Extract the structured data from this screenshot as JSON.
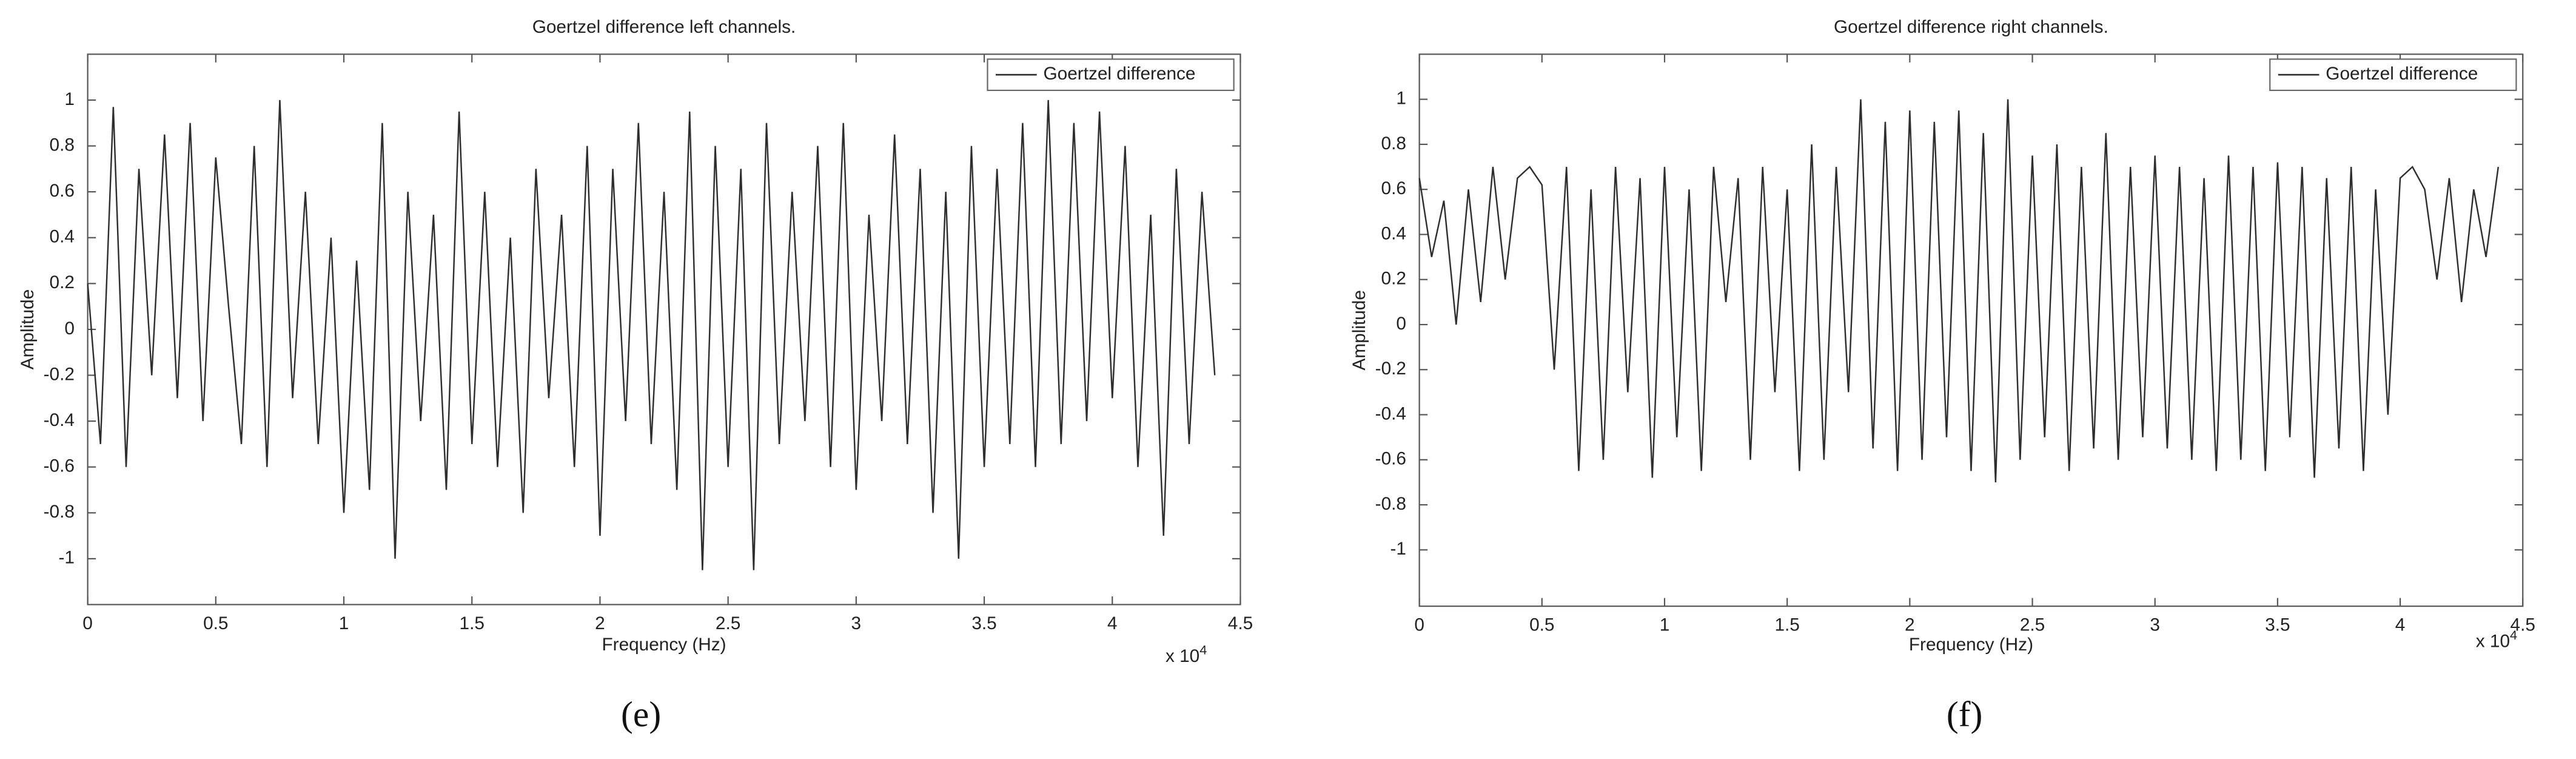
{
  "chart_data": [
    {
      "type": "line",
      "title": "Goertzel difference left channels.",
      "x_label": "Frequency (Hz)",
      "y_label": "Amplitude",
      "x_scale_base": "x 10",
      "x_scale_exponent": "4",
      "caption": "(e)",
      "legend": "upper right",
      "xlim": [
        0,
        4.5
      ],
      "xticks": [
        0,
        0.5,
        1,
        1.5,
        2,
        2.5,
        3,
        3.5,
        4,
        4.5
      ],
      "ylim": [
        -1.2,
        1.2
      ],
      "yticks": [
        -1,
        -0.8,
        -0.6,
        -0.4,
        -0.2,
        0,
        0.2,
        0.4,
        0.6,
        0.8,
        1
      ],
      "x": [
        0,
        0.05,
        0.1,
        0.15,
        0.2,
        0.25,
        0.3,
        0.35,
        0.4,
        0.45,
        0.5,
        0.55,
        0.6,
        0.65,
        0.7,
        0.75,
        0.8,
        0.85,
        0.9,
        0.95,
        1,
        1.05,
        1.1,
        1.15,
        1.2,
        1.25,
        1.3,
        1.35,
        1.4,
        1.45,
        1.5,
        1.55,
        1.6,
        1.65,
        1.7,
        1.75,
        1.8,
        1.85,
        1.9,
        1.95,
        2,
        2.05,
        2.1,
        2.15,
        2.2,
        2.25,
        2.3,
        2.35,
        2.4,
        2.45,
        2.5,
        2.55,
        2.6,
        2.65,
        2.7,
        2.75,
        2.8,
        2.85,
        2.9,
        2.95,
        3,
        3.05,
        3.1,
        3.15,
        3.2,
        3.25,
        3.3,
        3.35,
        3.4,
        3.45,
        3.5,
        3.55,
        3.6,
        3.65,
        3.7,
        3.75,
        3.8,
        3.85,
        3.9,
        3.95,
        4,
        4.05,
        4.1,
        4.15,
        4.2,
        4.25,
        4.3,
        4.35,
        4.4
      ],
      "series": [
        {
          "name": "Goertzel difference",
          "color": "#2e2e2e",
          "values": [
            0.2,
            -0.5,
            0.97,
            -0.6,
            0.7,
            -0.2,
            0.85,
            -0.3,
            0.9,
            -0.4,
            0.75,
            0.1,
            -0.5,
            0.8,
            -0.6,
            1.0,
            -0.3,
            0.6,
            -0.5,
            0.4,
            -0.8,
            0.3,
            -0.7,
            0.9,
            -1.0,
            0.6,
            -0.4,
            0.5,
            -0.7,
            0.95,
            -0.5,
            0.6,
            -0.6,
            0.4,
            -0.8,
            0.7,
            -0.3,
            0.5,
            -0.6,
            0.8,
            -0.9,
            0.7,
            -0.4,
            0.9,
            -0.5,
            0.6,
            -0.7,
            0.95,
            -1.05,
            0.8,
            -0.6,
            0.7,
            -1.05,
            0.9,
            -0.5,
            0.6,
            -0.4,
            0.8,
            -0.6,
            0.9,
            -0.7,
            0.5,
            -0.4,
            0.85,
            -0.5,
            0.7,
            -0.8,
            0.6,
            -1.0,
            0.8,
            -0.6,
            0.7,
            -0.5,
            0.9,
            -0.6,
            1.0,
            -0.5,
            0.9,
            -0.4,
            0.95,
            -0.3,
            0.8,
            -0.6,
            0.5,
            -0.9,
            0.7,
            -0.5,
            0.6,
            -0.2
          ]
        }
      ]
    },
    {
      "type": "line",
      "title": "Goertzel difference right channels.",
      "x_label": "Frequency (Hz)",
      "y_label": "Amplitude",
      "x_scale_base": "x 10",
      "x_scale_exponent": "4",
      "caption": "(f)",
      "legend": "upper right",
      "xlim": [
        0,
        4.5
      ],
      "xticks": [
        0,
        0.5,
        1,
        1.5,
        2,
        2.5,
        3,
        3.5,
        4,
        4.5
      ],
      "ylim": [
        -1.25,
        1.2
      ],
      "yticks": [
        -1,
        -0.8,
        -0.6,
        -0.4,
        -0.2,
        0,
        0.2,
        0.4,
        0.6,
        0.8,
        1
      ],
      "x": [
        0,
        0.05,
        0.1,
        0.15,
        0.2,
        0.25,
        0.3,
        0.35,
        0.4,
        0.45,
        0.5,
        0.55,
        0.6,
        0.65,
        0.7,
        0.75,
        0.8,
        0.85,
        0.9,
        0.95,
        1,
        1.05,
        1.1,
        1.15,
        1.2,
        1.25,
        1.3,
        1.35,
        1.4,
        1.45,
        1.5,
        1.55,
        1.6,
        1.65,
        1.7,
        1.75,
        1.8,
        1.85,
        1.9,
        1.95,
        2,
        2.05,
        2.1,
        2.15,
        2.2,
        2.25,
        2.3,
        2.35,
        2.4,
        2.45,
        2.5,
        2.55,
        2.6,
        2.65,
        2.7,
        2.75,
        2.8,
        2.85,
        2.9,
        2.95,
        3,
        3.05,
        3.1,
        3.15,
        3.2,
        3.25,
        3.3,
        3.35,
        3.4,
        3.45,
        3.5,
        3.55,
        3.6,
        3.65,
        3.7,
        3.75,
        3.8,
        3.85,
        3.9,
        3.95,
        4,
        4.05,
        4.1,
        4.15,
        4.2,
        4.25,
        4.3,
        4.35,
        4.4
      ],
      "series": [
        {
          "name": "Goertzel difference",
          "color": "#2e2e2e",
          "values": [
            0.65,
            0.3,
            0.55,
            0.0,
            0.6,
            0.1,
            0.7,
            0.2,
            0.65,
            0.7,
            0.62,
            -0.2,
            0.7,
            -0.65,
            0.6,
            -0.6,
            0.7,
            -0.3,
            0.65,
            -0.68,
            0.7,
            -0.5,
            0.6,
            -0.65,
            0.7,
            0.1,
            0.65,
            -0.6,
            0.7,
            -0.3,
            0.6,
            -0.65,
            0.8,
            -0.6,
            0.7,
            -0.3,
            1.0,
            -0.55,
            0.9,
            -0.65,
            0.95,
            -0.6,
            0.9,
            -0.5,
            0.95,
            -0.65,
            0.85,
            -0.7,
            1.0,
            -0.6,
            0.75,
            -0.5,
            0.8,
            -0.65,
            0.7,
            -0.55,
            0.85,
            -0.6,
            0.7,
            -0.5,
            0.75,
            -0.55,
            0.7,
            -0.6,
            0.65,
            -0.65,
            0.75,
            -0.6,
            0.7,
            -0.65,
            0.72,
            -0.5,
            0.7,
            -0.68,
            0.65,
            -0.55,
            0.7,
            -0.65,
            0.6,
            -0.4,
            0.65,
            0.7,
            0.6,
            0.2,
            0.65,
            0.1,
            0.6,
            0.3,
            0.7
          ]
        }
      ]
    }
  ]
}
